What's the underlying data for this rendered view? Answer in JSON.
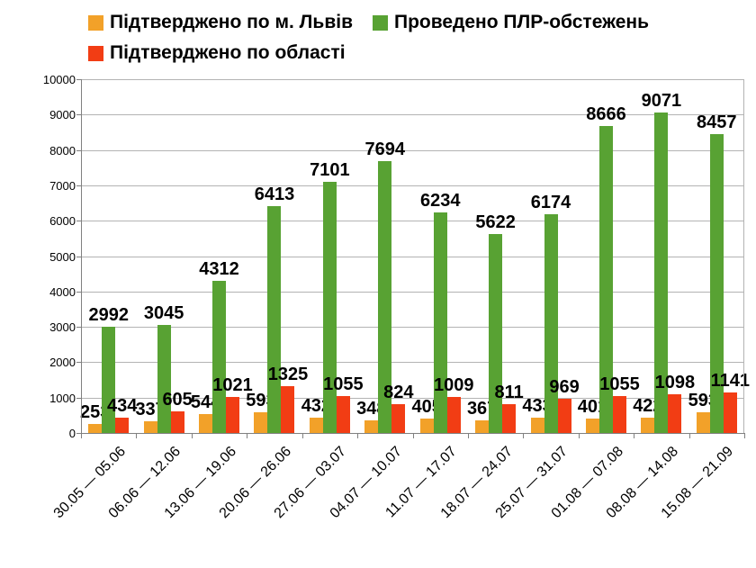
{
  "chart_data": {
    "type": "bar",
    "title": "",
    "xlabel": "",
    "ylabel": "",
    "categories": [
      "30.05 — 05.06",
      "06.06 — 12.06",
      "13.06 — 19.06",
      "20.06 — 26.06",
      "27.06 — 03.07",
      "04.07 — 10.07",
      "11.07 — 17.07",
      "18.07 — 24.07",
      "25.07 — 31.07",
      "01.08 — 07.08",
      "08.08 — 14.08",
      "15.08 — 21.09"
    ],
    "series": [
      {
        "name": "Підтверджено по м. Львів",
        "color": "#F2A129",
        "values": [
          253,
          337,
          544,
          593,
          432,
          348,
          405,
          367,
          433,
          401,
          422,
          593
        ]
      },
      {
        "name": "Проведено ПЛР-обстежень",
        "color": "#58A233",
        "values": [
          2992,
          3045,
          4312,
          6413,
          7101,
          7694,
          6234,
          5622,
          6174,
          8666,
          9071,
          8457
        ]
      },
      {
        "name": "Підтверджено по області",
        "color": "#F23D14",
        "values": [
          434,
          605,
          1021,
          1325,
          1055,
          824,
          1009,
          811,
          969,
          1055,
          1098,
          1141
        ]
      }
    ],
    "ylim": [
      0,
      10000
    ],
    "yticks": [
      0,
      1000,
      2000,
      3000,
      4000,
      5000,
      6000,
      7000,
      8000,
      9000,
      10000
    ],
    "grid": true,
    "data_labels": true,
    "legend_position": "top-left",
    "colors": {
      "gridline": "#b3b3b3",
      "axis": "#808080",
      "text": "#000000",
      "background": "#ffffff"
    }
  }
}
